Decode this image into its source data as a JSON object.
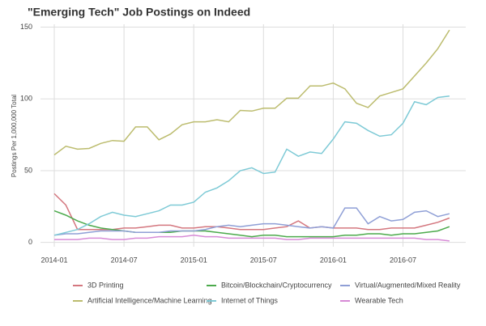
{
  "chart_data": {
    "type": "line",
    "title": "\"Emerging Tech\" Job Postings on Indeed",
    "y_label": "Postings Per 1,000,000 Total",
    "categories": [
      "2014-01",
      null,
      null,
      null,
      null,
      null,
      "2014-07",
      null,
      null,
      null,
      null,
      null,
      "2015-01",
      null,
      null,
      null,
      null,
      null,
      "2015-07",
      null,
      null,
      null,
      null,
      null,
      "2016-01",
      null,
      null,
      null,
      null,
      null,
      "2016-07",
      null,
      null,
      null,
      null
    ],
    "ylim": [
      -3,
      152
    ],
    "yticks": [
      0,
      50,
      100,
      150
    ],
    "grid": true,
    "legend": "bottom",
    "series": [
      {
        "name": "3D Printing",
        "color": "#d4777f",
        "values": [
          34,
          26,
          9,
          9,
          9,
          9,
          10,
          10,
          11,
          12,
          12,
          10,
          10,
          11,
          11,
          10,
          9,
          9,
          9,
          10,
          11,
          15,
          10,
          11,
          10,
          10,
          10,
          9,
          9,
          10,
          10,
          10,
          12,
          14,
          17
        ]
      },
      {
        "name": "Bitcoin/Blockchain/Cryptocurrency",
        "color": "#4caa4c",
        "values": [
          22,
          19,
          15,
          12,
          10,
          9,
          8,
          7,
          7,
          7,
          7,
          8,
          8,
          8,
          7,
          6,
          5,
          4,
          5,
          5,
          4,
          4,
          4,
          4,
          4,
          5,
          5,
          6,
          6,
          5,
          6,
          6,
          7,
          8,
          11
        ]
      },
      {
        "name": "Virtual/Augmented/Mixed Reality",
        "color": "#8f9fd6",
        "values": [
          5,
          6,
          6,
          7,
          8,
          8,
          8,
          7,
          7,
          7,
          8,
          8,
          8,
          9,
          11,
          12,
          11,
          12,
          13,
          13,
          12,
          11,
          10,
          11,
          10,
          24,
          24,
          13,
          18,
          15,
          16,
          21,
          22,
          18,
          20
        ]
      },
      {
        "name": "Artificial Intelligence/Machine Learning",
        "color": "#bcbc6e",
        "values": [
          61,
          67,
          65,
          65.5,
          69,
          71,
          70.5,
          80.5,
          80.5,
          71.5,
          75.5,
          82,
          84,
          84,
          85.5,
          84,
          92,
          91.5,
          93.5,
          93.5,
          100.5,
          100.5,
          109,
          109,
          111,
          107,
          97,
          94,
          102,
          104.5,
          107,
          116,
          125,
          135,
          148
        ]
      },
      {
        "name": "Internet of Things",
        "color": "#7ecad6",
        "values": [
          5,
          7,
          9,
          13,
          18,
          21,
          19,
          18,
          20,
          22,
          26,
          26,
          28,
          35,
          38,
          43,
          50,
          52,
          48,
          49,
          65,
          60,
          63,
          62,
          72,
          84,
          83,
          78,
          74,
          75,
          83,
          98,
          96,
          101,
          102
        ]
      },
      {
        "name": "Wearable Tech",
        "color": "#d78ad6",
        "values": [
          2,
          2,
          2,
          3,
          3,
          2,
          2,
          3,
          3,
          4,
          4,
          4,
          5,
          4,
          4,
          3,
          3,
          3,
          3,
          3,
          2,
          2,
          3,
          3,
          3,
          3,
          3,
          3,
          3,
          3,
          3,
          3,
          2,
          2,
          1
        ]
      }
    ]
  }
}
